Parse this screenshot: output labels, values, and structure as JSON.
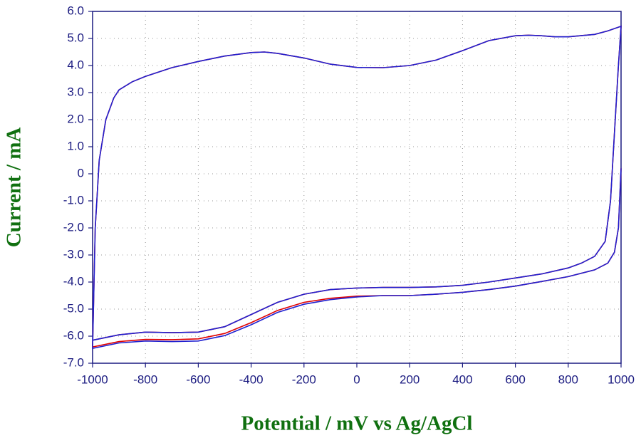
{
  "chart_data": {
    "type": "line",
    "xlabel": "Potential / mV vs Ag/AgCl",
    "ylabel": "Current / mA",
    "x": [
      1000,
      990,
      975,
      950,
      900,
      800,
      700,
      600,
      500,
      400,
      300,
      200,
      100,
      0,
      -100,
      -200,
      -300,
      -400,
      -500,
      -600,
      -700,
      -800,
      -900,
      -1000,
      -990,
      -975,
      -950,
      -920,
      -900,
      -850,
      -800,
      -700,
      -600,
      -500,
      -400,
      -350,
      -300,
      -200,
      -100,
      0,
      100,
      200,
      300,
      400,
      500,
      600,
      650,
      700,
      750,
      800,
      900,
      950,
      1000,
      990,
      975,
      960,
      940,
      900,
      850,
      800,
      700,
      600,
      500,
      400,
      300,
      200,
      100,
      0,
      -100,
      -200,
      -300,
      -400,
      -500,
      -600,
      -700,
      -800,
      -900,
      -1000
    ],
    "series": [
      {
        "color": "#e00000",
        "values": [
          0.2,
          -2.0,
          -2.9,
          -3.3,
          -3.55,
          -3.8,
          -3.98,
          -4.15,
          -4.28,
          -4.38,
          -4.45,
          -4.5,
          -4.5,
          -4.52,
          -4.6,
          -4.75,
          -5.05,
          -5.5,
          -5.9,
          -6.1,
          -6.13,
          -6.12,
          -6.2,
          -6.4,
          -2.0,
          0.5,
          2.0,
          2.8,
          3.1,
          3.4,
          3.6,
          3.92,
          4.15,
          4.35,
          4.48,
          4.5,
          4.45,
          4.28,
          4.05,
          3.93,
          3.92,
          4.0,
          4.2,
          4.55,
          4.92,
          5.1,
          5.12,
          5.1,
          5.06,
          5.06,
          5.15,
          5.28,
          5.45,
          4.0,
          1.5,
          -1.0,
          -2.5,
          -3.05,
          -3.3,
          -3.48,
          -3.7,
          -3.85,
          -4.0,
          -4.12,
          -4.18,
          -4.2,
          -4.2,
          -4.22,
          -4.28,
          -4.45,
          -4.75,
          -5.2,
          -5.65,
          -5.85,
          -5.87,
          -5.85,
          -5.95,
          -6.15
        ]
      },
      {
        "color": "#2020d0",
        "values": [
          0.2,
          -2.0,
          -2.9,
          -3.3,
          -3.55,
          -3.8,
          -3.98,
          -4.15,
          -4.28,
          -4.38,
          -4.45,
          -4.5,
          -4.5,
          -4.55,
          -4.65,
          -4.82,
          -5.12,
          -5.58,
          -5.98,
          -6.18,
          -6.2,
          -6.18,
          -6.25,
          -6.45,
          -2.0,
          0.5,
          2.0,
          2.8,
          3.1,
          3.4,
          3.6,
          3.92,
          4.15,
          4.35,
          4.48,
          4.5,
          4.45,
          4.28,
          4.05,
          3.93,
          3.92,
          4.0,
          4.2,
          4.55,
          4.92,
          5.1,
          5.12,
          5.1,
          5.06,
          5.06,
          5.15,
          5.28,
          5.45,
          4.0,
          1.5,
          -1.0,
          -2.5,
          -3.05,
          -3.3,
          -3.48,
          -3.7,
          -3.85,
          -4.0,
          -4.12,
          -4.18,
          -4.2,
          -4.2,
          -4.22,
          -4.28,
          -4.45,
          -4.75,
          -5.2,
          -5.65,
          -5.85,
          -5.87,
          -5.85,
          -5.95,
          -6.15
        ]
      }
    ],
    "xlim": [
      -1000,
      1000
    ],
    "xticks": [
      -1000,
      -800,
      -600,
      -400,
      -200,
      0,
      200,
      400,
      600,
      800,
      1000
    ],
    "ylim": [
      -7,
      6
    ],
    "yticks": [
      {
        "value": 6,
        "label": "6.0"
      },
      {
        "value": 5,
        "label": "5.0"
      },
      {
        "value": 4,
        "label": "4.0"
      },
      {
        "value": 3,
        "label": "3.0"
      },
      {
        "value": 2,
        "label": "2.0"
      },
      {
        "value": 1,
        "label": "1.0"
      },
      0,
      {
        "value": -1,
        "label": "-1.0"
      },
      {
        "value": -2,
        "label": "-2.0"
      },
      {
        "value": -3,
        "label": "-3.0"
      },
      {
        "value": -4,
        "label": "-4.0"
      },
      {
        "value": -5,
        "label": "-5.0"
      },
      {
        "value": -6,
        "label": "-6.0"
      },
      {
        "value": -7,
        "label": "-7.0"
      }
    ],
    "grid": true
  }
}
